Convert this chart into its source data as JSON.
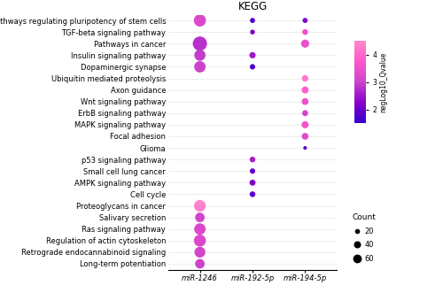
{
  "title": "KEGG",
  "xlabel_categories": [
    "miR-1246",
    "miR-192-5p",
    "miR-194-5p"
  ],
  "pathways": [
    "Signaling pathways regulating pluripotency of stem cells",
    "TGF-beta signaling pathway",
    "Pathways in cancer",
    "Insulin signaling pathway",
    "Dopaminergic synapse",
    "Ubiquitin mediated proteolysis",
    "Axon guidance",
    "Wnt signaling pathway",
    "ErbB signaling pathway",
    "MAPK signaling pathway",
    "Focal adhesion",
    "Glioma",
    "p53 signaling pathway",
    "Small cell lung cancer",
    "AMPK signaling pathway",
    "Cell cycle",
    "Proteoglycans in cancer",
    "Salivary secretion",
    "Ras signaling pathway",
    "Regulation of actin cytoskeleton",
    "Retrograde endocannabinoid signaling",
    "Long-term potentiation"
  ],
  "dots": [
    {
      "pathway": "Signaling pathways regulating pluripotency of stem cells",
      "mirna": "miR-1246",
      "count": 45,
      "neglog10q": 3.2
    },
    {
      "pathway": "Signaling pathways regulating pluripotency of stem cells",
      "mirna": "miR-192-5p",
      "count": 8,
      "neglog10q": 1.8
    },
    {
      "pathway": "Signaling pathways regulating pluripotency of stem cells",
      "mirna": "miR-194-5p",
      "count": 8,
      "neglog10q": 2.2
    },
    {
      "pathway": "TGF-beta signaling pathway",
      "mirna": "miR-192-5p",
      "count": 7,
      "neglog10q": 2.1
    },
    {
      "pathway": "TGF-beta signaling pathway",
      "mirna": "miR-194-5p",
      "count": 10,
      "neglog10q": 3.5
    },
    {
      "pathway": "Pathways in cancer",
      "mirna": "miR-1246",
      "count": 62,
      "neglog10q": 2.8
    },
    {
      "pathway": "Pathways in cancer",
      "mirna": "miR-194-5p",
      "count": 20,
      "neglog10q": 3.5
    },
    {
      "pathway": "Insulin signaling pathway",
      "mirna": "miR-1246",
      "count": 38,
      "neglog10q": 2.9
    },
    {
      "pathway": "Insulin signaling pathway",
      "mirna": "miR-192-5p",
      "count": 12,
      "neglog10q": 2.5
    },
    {
      "pathway": "Dopaminergic synapse",
      "mirna": "miR-1246",
      "count": 40,
      "neglog10q": 3.0
    },
    {
      "pathway": "Dopaminergic synapse",
      "mirna": "miR-192-5p",
      "count": 9,
      "neglog10q": 1.7
    },
    {
      "pathway": "Ubiquitin mediated proteolysis",
      "mirna": "miR-194-5p",
      "count": 13,
      "neglog10q": 4.3
    },
    {
      "pathway": "Axon guidance",
      "mirna": "miR-194-5p",
      "count": 15,
      "neglog10q": 3.9
    },
    {
      "pathway": "Wnt signaling pathway",
      "mirna": "miR-194-5p",
      "count": 14,
      "neglog10q": 3.5
    },
    {
      "pathway": "ErbB signaling pathway",
      "mirna": "miR-194-5p",
      "count": 11,
      "neglog10q": 3.1
    },
    {
      "pathway": "MAPK signaling pathway",
      "mirna": "miR-194-5p",
      "count": 15,
      "neglog10q": 3.6
    },
    {
      "pathway": "Focal adhesion",
      "mirna": "miR-194-5p",
      "count": 14,
      "neglog10q": 3.3
    },
    {
      "pathway": "Glioma",
      "mirna": "miR-194-5p",
      "count": 4,
      "neglog10q": 1.8
    },
    {
      "pathway": "p53 signaling pathway",
      "mirna": "miR-192-5p",
      "count": 10,
      "neglog10q": 2.6
    },
    {
      "pathway": "Small cell lung cancer",
      "mirna": "miR-192-5p",
      "count": 9,
      "neglog10q": 2.0
    },
    {
      "pathway": "AMPK signaling pathway",
      "mirna": "miR-192-5p",
      "count": 11,
      "neglog10q": 2.2
    },
    {
      "pathway": "Cell cycle",
      "mirna": "miR-192-5p",
      "count": 10,
      "neglog10q": 1.9
    },
    {
      "pathway": "Proteoglycans in cancer",
      "mirna": "miR-1246",
      "count": 42,
      "neglog10q": 4.4
    },
    {
      "pathway": "Salivary secretion",
      "mirna": "miR-1246",
      "count": 28,
      "neglog10q": 3.1
    },
    {
      "pathway": "Ras signaling pathway",
      "mirna": "miR-1246",
      "count": 40,
      "neglog10q": 3.2
    },
    {
      "pathway": "Regulation of actin cytoskeleton",
      "mirna": "miR-1246",
      "count": 44,
      "neglog10q": 3.2
    },
    {
      "pathway": "Retrograde endocannabinoid signaling",
      "mirna": "miR-1246",
      "count": 36,
      "neglog10q": 3.1
    },
    {
      "pathway": "Long-term potentiation",
      "mirna": "miR-1246",
      "count": 28,
      "neglog10q": 3.0
    }
  ],
  "colorbar_label": "negLog10_Qvalue",
  "colorbar_min": 1.5,
  "colorbar_max": 4.5,
  "colorbar_ticks": [
    2,
    3,
    4
  ],
  "count_legend_values": [
    20,
    40,
    60
  ],
  "background_color": "#ffffff",
  "font_size": 6.0,
  "title_fontsize": 8.5
}
